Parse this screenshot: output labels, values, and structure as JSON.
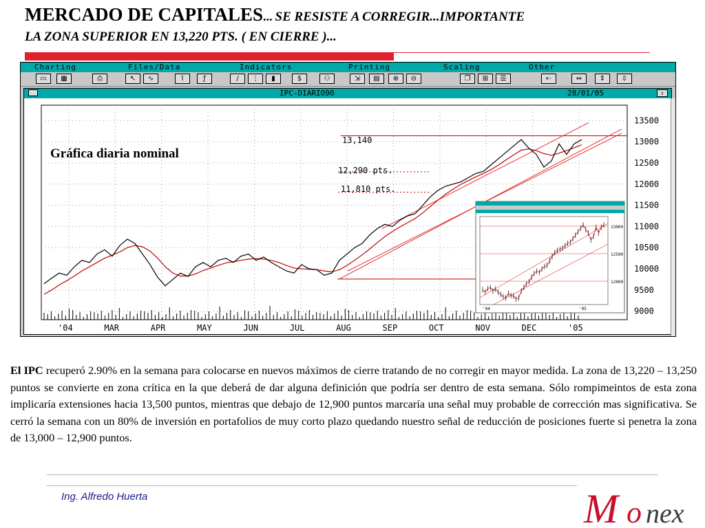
{
  "slide": {
    "title_main": "MERCADO DE CAPITALES",
    "title_ellipsis": "...",
    "title_rest": "SE RESISTE A CORREGIR...IMPORTANTE",
    "title_line2": "LA ZONA SUPERIOR EN 13,220 PTS. ( EN CIERRE )...",
    "colors": {
      "accent_red": "#e0202a",
      "teal": "#00a8a8",
      "price_line": "#000000",
      "ma_line": "#c00000",
      "channel": "#e03030"
    }
  },
  "app": {
    "menu": [
      "Charting",
      "Files/Data",
      "Indicators",
      "Printing",
      "Scaling",
      "Other"
    ],
    "toolbar_icons": [
      "open-folder-icon",
      "grid-icon",
      "printer-icon",
      "pointer-icon",
      "line-tool-icon",
      "zigzag-icon",
      "function-icon",
      "slash-icon",
      "vertical-bars-icon",
      "bar-chart-icon",
      "dollar-icon",
      "binoculars-icon",
      "compress-icon",
      "table-icon",
      "zoom-in-icon",
      "zoom-out-icon",
      "copy-icon",
      "tile-icon",
      "list-icon",
      "left-arrow-icon",
      "left-right-icon",
      "center-icon",
      "up-down-icon"
    ],
    "window_title": "IPC-DIARIO90",
    "window_date": "28/01/05"
  },
  "chart_data": {
    "type": "line",
    "annotation_title": "Gráfica diaria nominal",
    "annotations": [
      "13,140",
      "12,290 pts.",
      "11,810 pts."
    ],
    "y_ticks": [
      13500,
      13000,
      12500,
      12000,
      11500,
      11000,
      10500,
      10000,
      9500,
      9000
    ],
    "ylim": [
      8800,
      13700
    ],
    "x_ticks": [
      "'04",
      "MAR",
      "APR",
      "MAY",
      "JUN",
      "JUL",
      "AUG",
      "SEP",
      "OCT",
      "NOV",
      "DEC",
      "'05"
    ],
    "horizontal_levels": [
      13140,
      12290,
      11810,
      9760
    ],
    "series": [
      {
        "values": [
          9650,
          9780,
          9900,
          9850,
          10050,
          10200,
          10150,
          10350,
          10450,
          10300,
          10550,
          10700,
          10600,
          10350,
          10100,
          9800,
          9600,
          9750,
          9900,
          9820,
          10050,
          10150,
          10050,
          10200,
          10250,
          10150,
          10300,
          10350,
          10200,
          10280,
          10150,
          10050,
          9950,
          9900,
          10100,
          10000,
          9980,
          9850,
          9900,
          10200,
          10350,
          10500,
          10600,
          10800,
          10950,
          11050,
          11000,
          11150,
          11250,
          11300,
          11500,
          11700,
          11850,
          11950,
          12000,
          12050,
          12150,
          12250,
          12300,
          12450,
          12600,
          12750,
          12900,
          13050,
          12850,
          12700,
          12400,
          12550,
          12950,
          12700,
          12950,
          13050
        ]
      },
      {
        "values": [
          9400,
          9500,
          9620,
          9720,
          9830,
          9950,
          10050,
          10150,
          10250,
          10320,
          10400,
          10500,
          10550,
          10520,
          10420,
          10250,
          10050,
          9900,
          9830,
          9830,
          9880,
          9960,
          10020,
          10080,
          10140,
          10170,
          10200,
          10230,
          10240,
          10230,
          10200,
          10150,
          10080,
          10020,
          10000,
          9990,
          9980,
          9950,
          9930,
          9980,
          10080,
          10200,
          10330,
          10470,
          10620,
          10760,
          10880,
          10990,
          11090,
          11190,
          11320,
          11470,
          11620,
          11760,
          11880,
          11990,
          12080,
          12170,
          12250,
          12340,
          12450,
          12570,
          12690,
          12800,
          12830,
          12790,
          12720,
          12680,
          12730,
          12790,
          12860,
          12930
        ]
      }
    ],
    "inset": {
      "y_ticks": [
        13000,
        12500,
        12000
      ],
      "x_ticks": [
        "'04",
        "'05"
      ]
    }
  },
  "commentary": {
    "lead": "El IPC",
    "text": " recuperó 2.90% en la semana para colocarse en nuevos máximos de cierre tratando de no corregir en mayor medida. La zona de 13,220 – 13,250 puntos se convierte en zona crítica en la que deberá de dar alguna definición que podría ser dentro de esta semana. Sólo rompimeintos de esta zona implicaría extensiones hacia 13,500 puntos, mientras que debajo de 12,900 puntos marcaría una señal muy probable de corrección mas significativa. Se cerró la semana con un 80% de inversión en portafolios de muy corto plazo quedando nuestro señal de reducción de posiciones fuerte si penetra la zona de 13,000 – 12,900 puntos."
  },
  "footer": {
    "author": "Ing. Alfredo Huerta",
    "logo_text": "Monex"
  }
}
